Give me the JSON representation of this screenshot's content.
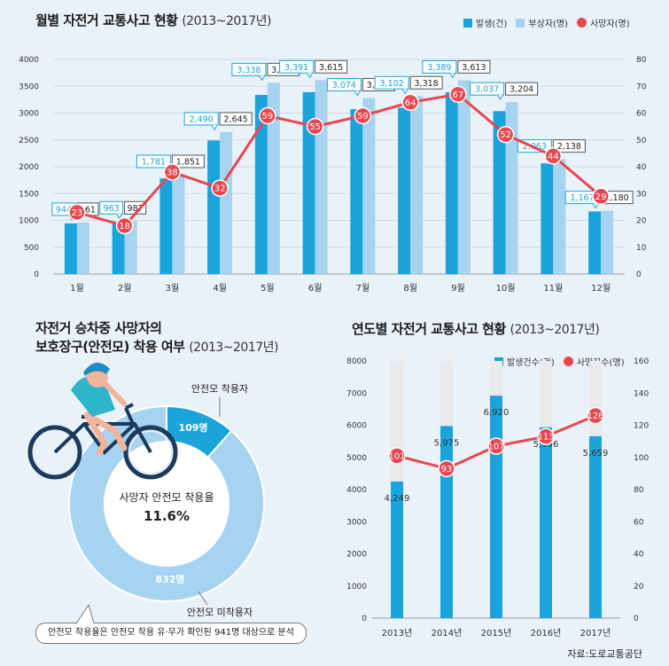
{
  "monthly": {
    "title": "월별 자전거 교통사고 현황",
    "subtitle": "(2013~2017년)",
    "legend": [
      "발생(건)",
      "부상자(명)",
      "사망자(명)"
    ],
    "colors": {
      "accident": "#1ba3dc",
      "injured": "#a6d3ef",
      "death": "#e8474f"
    }
  },
  "helmet": {
    "title_line1": "자전거 승차중 사망자의",
    "title_line2": "보호장구(안전모) 착용 여부",
    "subtitle": "(2013~2017년)",
    "center_label": "사망자 안전모 착용율",
    "center_value": "11.6%",
    "wearer_label": "안전모 착용자",
    "wearer_value": "109명",
    "nonwearer_label": "안전모 미착용자",
    "nonwearer_value": "832명",
    "note": "안전모 착용율은 안전모 착용 유·무가 확인된 941명 대상으로 분석"
  },
  "yearly": {
    "title": "연도별 자전거 교통사고 현황",
    "subtitle": "(2013~2017년)",
    "legend": [
      "발생건수(건)",
      "사망자수(명)"
    ]
  },
  "source": "자료:도로교통공단",
  "chart_data": [
    {
      "type": "bar",
      "categories": [
        "1월",
        "2월",
        "3월",
        "4월",
        "5월",
        "6월",
        "7월",
        "8월",
        "9월",
        "10월",
        "11월",
        "12월"
      ],
      "series": [
        {
          "name": "발생(건)",
          "values": [
            944,
            963,
            1781,
            2490,
            3338,
            3391,
            3074,
            3102,
            3389,
            3037,
            2063,
            1167
          ],
          "labels": [
            "944",
            "963",
            "1,781",
            "2,490",
            "3,338",
            "3,391",
            "3,074",
            "3,102",
            "3,389",
            "3,037",
            "2,063",
            "1,167"
          ]
        },
        {
          "name": "부상자(명)",
          "values": [
            961,
            987,
            1851,
            2645,
            3564,
            3615,
            3281,
            3318,
            3613,
            3204,
            2138,
            1180
          ],
          "labels": [
            "961",
            "987",
            "1,851",
            "2,645",
            "3,564",
            "3,615",
            "3,281",
            "3,318",
            "3,613",
            "3,204",
            "2,138",
            "1,180"
          ]
        },
        {
          "name": "사망자(명)",
          "axis": "right",
          "values": [
            23,
            18,
            38,
            32,
            59,
            55,
            59,
            64,
            67,
            52,
            44,
            29
          ]
        }
      ],
      "ylim": [
        0,
        4000
      ],
      "yticks": [
        "0",
        "500",
        "1000",
        "1500",
        "2000",
        "2500",
        "3000",
        "3500",
        "4000"
      ],
      "y2lim": [
        0,
        80
      ],
      "y2ticks": [
        "0",
        "10",
        "20",
        "30",
        "40",
        "50",
        "60",
        "70",
        "80"
      ]
    },
    {
      "type": "pie",
      "categories": [
        "안전모 착용자",
        "안전모 미착용자"
      ],
      "values": [
        109,
        832
      ]
    },
    {
      "type": "bar",
      "categories": [
        "2013년",
        "2014년",
        "2015년",
        "2016년",
        "2017년"
      ],
      "series": [
        {
          "name": "발생건수(건)",
          "values": [
            4249,
            5975,
            6920,
            5936,
            5659
          ],
          "labels": [
            "4,249",
            "5,975",
            "6,920",
            "5,936",
            "5,659"
          ]
        },
        {
          "name": "사망자수(명)",
          "axis": "right",
          "values": [
            101,
            93,
            107,
            113,
            126
          ]
        }
      ],
      "ylim": [
        0,
        8000
      ],
      "yticks": [
        "0",
        "1000",
        "2000",
        "3000",
        "4000",
        "5000",
        "6000",
        "7000",
        "8000"
      ],
      "y2lim": [
        0,
        160
      ],
      "y2ticks": [
        "0",
        "20",
        "40",
        "60",
        "80",
        "100",
        "120",
        "140",
        "160"
      ]
    }
  ]
}
